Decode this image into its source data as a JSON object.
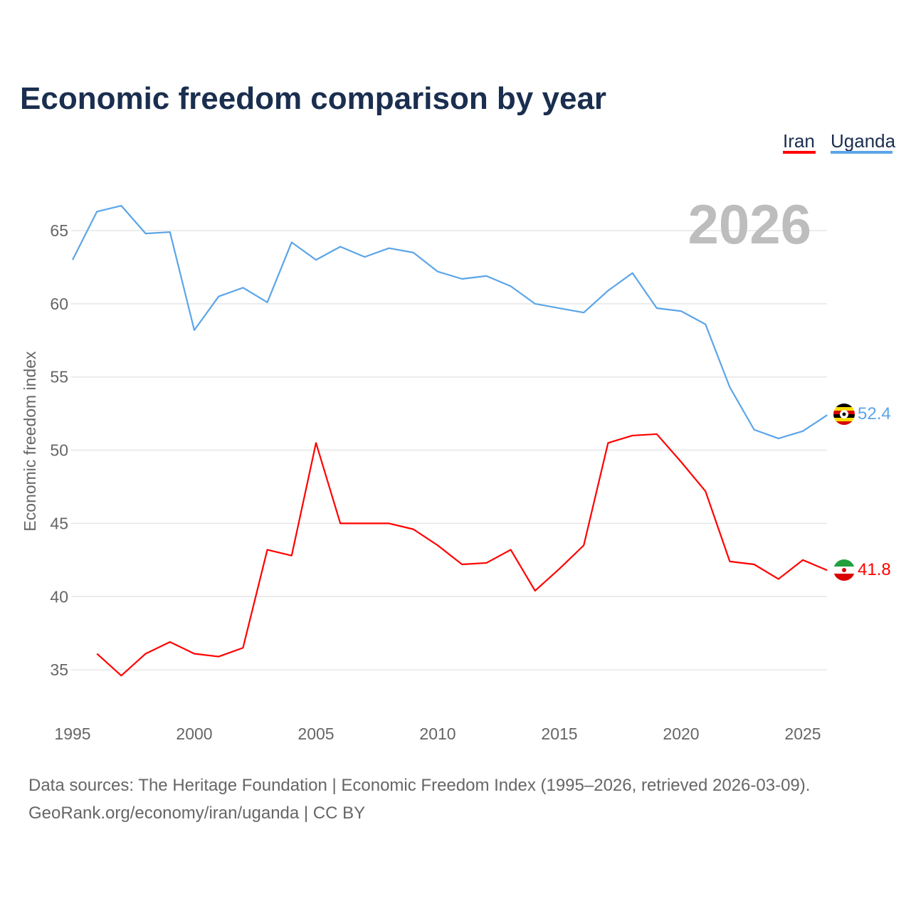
{
  "title": "Economic freedom comparison by year",
  "current_year_label": "2026",
  "legend": [
    {
      "name": "Iran",
      "color": "#ff0000"
    },
    {
      "name": "Uganda",
      "color": "#5ba5e8"
    }
  ],
  "footer": {
    "line1": "Data sources: The Heritage Foundation | Economic Freedom Index (1995–2026, retrieved 2026-03-09).",
    "line2": "GeoRank.org/economy/iran/uganda | CC BY"
  },
  "chart_data": {
    "type": "line",
    "title": "Economic freedom comparison by year",
    "xlabel": "",
    "ylabel": "Economic freedom index",
    "xlim": [
      1995,
      2026
    ],
    "ylim": [
      32,
      68
    ],
    "xticks": [
      1995,
      2000,
      2005,
      2010,
      2015,
      2020,
      2025
    ],
    "yticks": [
      35,
      40,
      45,
      50,
      55,
      60,
      65
    ],
    "grid": true,
    "legend_position": "top-right",
    "series": [
      {
        "name": "Iran",
        "color": "#ff0000",
        "end_label": "41.8",
        "x": [
          1996,
          1997,
          1998,
          1999,
          2000,
          2001,
          2002,
          2003,
          2004,
          2005,
          2006,
          2007,
          2008,
          2009,
          2010,
          2011,
          2012,
          2013,
          2014,
          2015,
          2016,
          2017,
          2018,
          2019,
          2020,
          2021,
          2022,
          2023,
          2024,
          2025,
          2026
        ],
        "values": [
          36.1,
          34.6,
          36.1,
          36.9,
          36.1,
          35.9,
          36.5,
          43.2,
          42.8,
          50.5,
          45.0,
          45.0,
          45.0,
          44.6,
          43.5,
          42.2,
          42.3,
          43.2,
          40.4,
          41.9,
          43.5,
          50.5,
          51.0,
          51.1,
          49.2,
          47.2,
          42.4,
          42.2,
          41.2,
          42.5,
          41.8
        ]
      },
      {
        "name": "Uganda",
        "color": "#5ba5e8",
        "end_label": "52.4",
        "x": [
          1995,
          1996,
          1997,
          1998,
          1999,
          2000,
          2001,
          2002,
          2003,
          2004,
          2005,
          2006,
          2007,
          2008,
          2009,
          2010,
          2011,
          2012,
          2013,
          2014,
          2015,
          2016,
          2017,
          2018,
          2019,
          2020,
          2021,
          2022,
          2023,
          2024,
          2025,
          2026
        ],
        "values": [
          63.0,
          66.3,
          66.7,
          64.8,
          64.9,
          58.2,
          60.5,
          61.1,
          60.1,
          64.2,
          63.0,
          63.9,
          63.2,
          63.8,
          63.5,
          62.2,
          61.7,
          61.9,
          61.2,
          60.0,
          59.7,
          59.4,
          60.9,
          62.1,
          59.7,
          59.5,
          58.6,
          54.3,
          51.4,
          50.8,
          51.3,
          52.4
        ]
      }
    ]
  }
}
